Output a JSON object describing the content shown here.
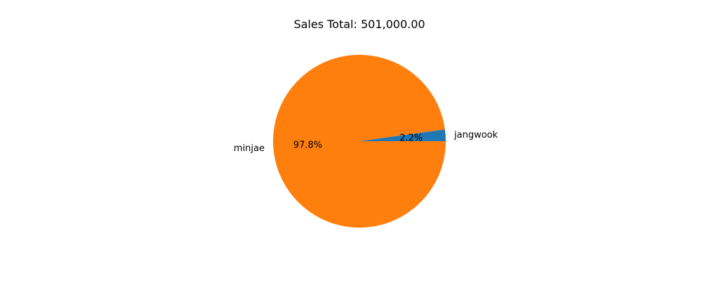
{
  "chart_data": {
    "type": "pie",
    "title": "Sales Total: 501,000.00",
    "slices": [
      {
        "label": "jangwook",
        "value": 11000,
        "percent_label": "2.2%",
        "color": "#1f77b4"
      },
      {
        "label": "minjae",
        "value": 490000,
        "percent_label": "97.8%",
        "color": "#ff7f0e"
      }
    ],
    "legend": "none"
  }
}
